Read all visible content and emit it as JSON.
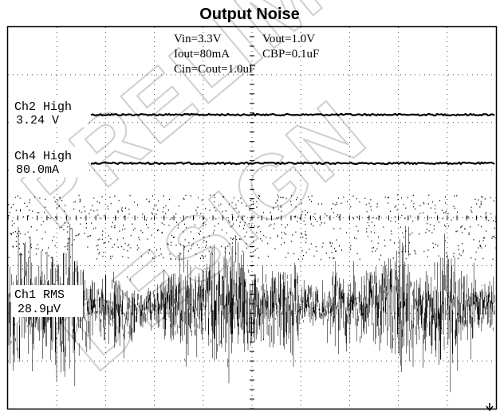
{
  "chart_data": {
    "type": "line",
    "title": "Output Noise",
    "grid": true,
    "conditions": {
      "vin": "Vin=3.3V",
      "vout": "Vout=1.0V",
      "iout": "Iout=80mA",
      "cbp": "CBP=0.1uF",
      "cin_cout": "Cin=Cout=1.0uF"
    },
    "series": [
      {
        "name": "Ch2",
        "label_line1": "Ch2 High",
        "label_line2": "3.24 V",
        "kind": "flat",
        "level": 3.24
      },
      {
        "name": "Ch4",
        "label_line1": "Ch4 High",
        "label_line2": "80.0mA",
        "kind": "flat",
        "level": 80.0
      },
      {
        "name": "Ch1",
        "label_line1": "Ch1 RMS",
        "label_line2": "28.9µV",
        "kind": "noise",
        "rms": 28.9
      }
    ],
    "watermark": [
      "PRELIMINARY",
      "DESIGN"
    ]
  },
  "colors": {
    "trace": "#000000",
    "grid": "#000000",
    "watermark": "#e4e4e4"
  }
}
